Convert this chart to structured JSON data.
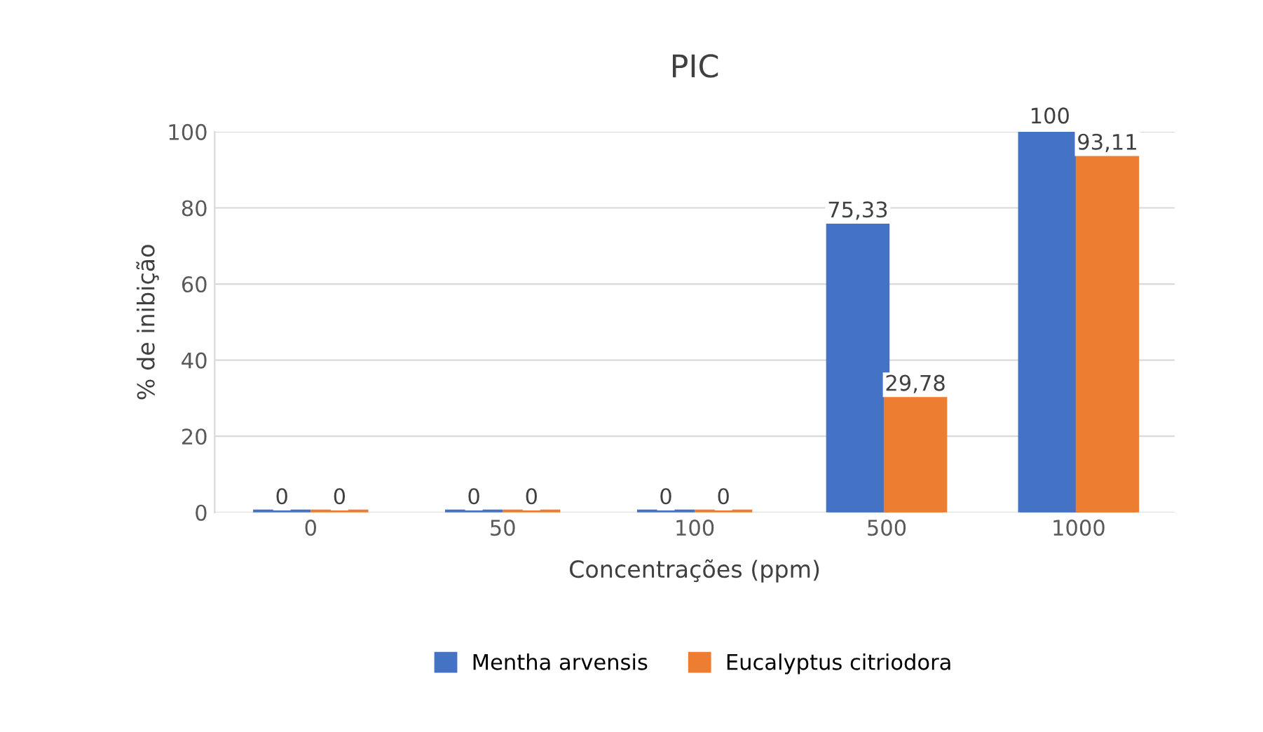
{
  "chart_data": {
    "type": "bar",
    "title": "PIC",
    "xlabel": "Concentrações (ppm)",
    "ylabel": "% de inibição",
    "categories": [
      "0",
      "50",
      "100",
      "500",
      "1000"
    ],
    "series": [
      {
        "name": "Mentha arvensis",
        "color": "#4472c4",
        "values": [
          0,
          0,
          0,
          75.33,
          100
        ],
        "value_labels": [
          "0",
          "0",
          "0",
          "75,33",
          "100"
        ]
      },
      {
        "name": "Eucalyptus citriodora",
        "color": "#ed7d31",
        "values": [
          0,
          0,
          0,
          29.78,
          93.11
        ],
        "value_labels": [
          "0",
          "0",
          "0",
          "29,78",
          "93,11"
        ]
      }
    ],
    "ylim": [
      0,
      100
    ],
    "yticks": [
      0,
      20,
      40,
      60,
      80,
      100
    ],
    "grid": "y",
    "legend": "bottom"
  }
}
